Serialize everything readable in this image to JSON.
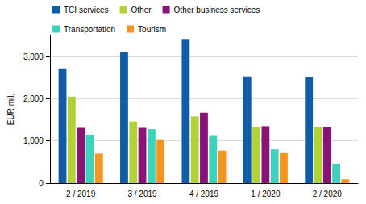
{
  "chart_data": {
    "type": "bar",
    "y_label": "EUR mil.",
    "categories": [
      "2 / 2019",
      "3 / 2019",
      "4 / 2019",
      "1 / 2020",
      "2 / 2020"
    ],
    "series": [
      {
        "name": "TCI services",
        "color": "#0f5da8",
        "values": [
          2720,
          3100,
          3420,
          2530,
          2510
        ]
      },
      {
        "name": "Other",
        "color": "#b2d235",
        "values": [
          2050,
          1460,
          1580,
          1320,
          1340
        ]
      },
      {
        "name": "Other business services",
        "color": "#8b1378",
        "values": [
          1310,
          1310,
          1670,
          1350,
          1330
        ]
      },
      {
        "name": "Transportation",
        "color": "#3cd3bd",
        "values": [
          1150,
          1280,
          1120,
          800,
          460
        ]
      },
      {
        "name": "Tourism",
        "color": "#f7941d",
        "values": [
          700,
          1020,
          770,
          710,
          90
        ]
      }
    ],
    "ylim": [
      0,
      3500
    ],
    "yticks": [
      0,
      {
        "value": 1000,
        "label": "1,000"
      },
      {
        "value": 2000,
        "label": "2,000"
      },
      {
        "value": 3000,
        "label": "3,000"
      }
    ],
    "grid": true,
    "legend": "top-left"
  }
}
